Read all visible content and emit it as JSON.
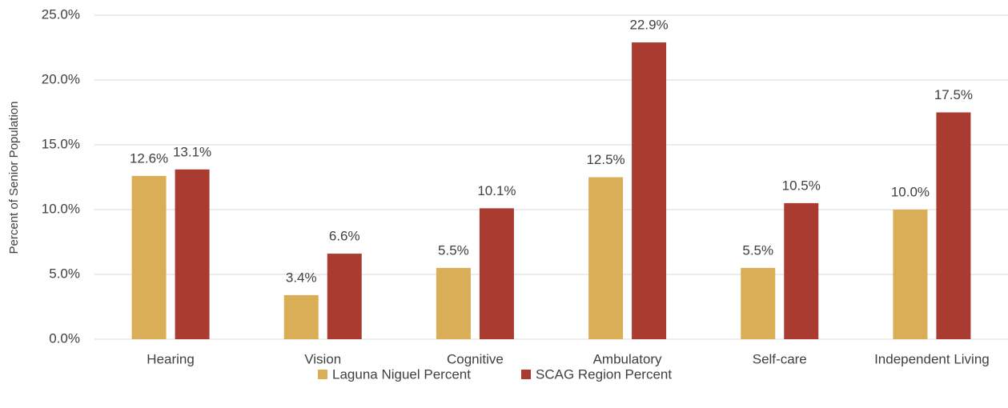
{
  "chart_data": {
    "type": "bar",
    "y_label": "Percent of Senior Population",
    "categories": [
      "Hearing",
      "Vision",
      "Cognitive",
      "Ambulatory",
      "Self-care",
      "Independent Living"
    ],
    "series": [
      {
        "name": "Laguna Niguel Percent",
        "color": "#d9ae57",
        "values": [
          12.6,
          3.4,
          5.5,
          12.5,
          5.5,
          10.0
        ],
        "value_labels": [
          "12.6%",
          "3.4%",
          "5.5%",
          "12.5%",
          "5.5%",
          "10.0%"
        ]
      },
      {
        "name": "SCAG Region Percent",
        "color": "#a93b30",
        "values": [
          13.1,
          6.6,
          10.1,
          22.9,
          10.5,
          17.5
        ],
        "value_labels": [
          "13.1%",
          "6.6%",
          "10.1%",
          "22.9%",
          "10.5%",
          "17.5%"
        ]
      }
    ],
    "ylim": [
      0,
      25
    ],
    "yticks": [
      {
        "value": 0,
        "label": "0.0%"
      },
      {
        "value": 5,
        "label": "5.0%"
      },
      {
        "value": 10,
        "label": "10.0%"
      },
      {
        "value": 15,
        "label": "15.0%"
      },
      {
        "value": 20,
        "label": "20.0%"
      },
      {
        "value": 25,
        "label": "25.0%"
      }
    ],
    "grid": true,
    "legend": "bottom"
  }
}
